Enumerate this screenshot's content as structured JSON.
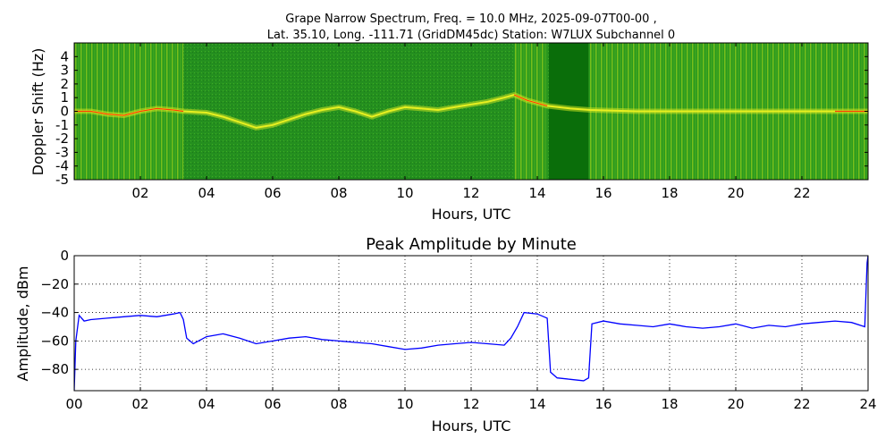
{
  "chart_data": [
    {
      "type": "heatmap",
      "title_line1": "Grape Narrow Spectrum, Freq. = 10.0 MHz, 2025-09-07T00-00 ,",
      "title_line2": "Lat.  35.10, Long. -111.71 (GridDM45dc) Station: W7LUX Subchannel 0",
      "xlabel": "Hours, UTC",
      "ylabel": "Doppler Shift (Hz)",
      "xlim": [
        0,
        24
      ],
      "ylim": [
        -5,
        5
      ],
      "x_ticks": [
        2,
        4,
        6,
        8,
        10,
        12,
        14,
        16,
        18,
        20,
        22
      ],
      "x_tick_labels": [
        "02",
        "04",
        "06",
        "08",
        "10",
        "12",
        "14",
        "16",
        "18",
        "20",
        "22"
      ],
      "y_ticks": [
        4,
        3,
        2,
        1,
        0,
        -1,
        -2,
        -3,
        -4,
        -5
      ],
      "y_tick_labels": [
        "4",
        "3",
        "2",
        "1",
        "0",
        "-1",
        "-2",
        "-3",
        "-4",
        "-5"
      ],
      "colors": {
        "background": "#228B22",
        "dark_band": "#0a6e0a",
        "trace": "#e8f020",
        "peak": "#ff2000"
      },
      "dark_band_hours": [
        [
          14.35,
          15.55
        ]
      ],
      "striped_bands_hours": [
        [
          0,
          3.3
        ],
        [
          13.3,
          14.3
        ],
        [
          15.55,
          24
        ]
      ],
      "doppler_trace": [
        {
          "t": 0.0,
          "f": 0.0
        },
        {
          "t": 0.5,
          "f": 0.0
        },
        {
          "t": 1.0,
          "f": -0.2
        },
        {
          "t": 1.5,
          "f": -0.3
        },
        {
          "t": 2.0,
          "f": 0.0
        },
        {
          "t": 2.5,
          "f": 0.2
        },
        {
          "t": 3.0,
          "f": 0.1
        },
        {
          "t": 3.3,
          "f": 0.0
        },
        {
          "t": 4.0,
          "f": -0.1
        },
        {
          "t": 4.5,
          "f": -0.4
        },
        {
          "t": 5.0,
          "f": -0.8
        },
        {
          "t": 5.5,
          "f": -1.2
        },
        {
          "t": 6.0,
          "f": -1.0
        },
        {
          "t": 6.5,
          "f": -0.6
        },
        {
          "t": 7.0,
          "f": -0.2
        },
        {
          "t": 7.5,
          "f": 0.1
        },
        {
          "t": 8.0,
          "f": 0.3
        },
        {
          "t": 8.5,
          "f": 0.0
        },
        {
          "t": 9.0,
          "f": -0.4
        },
        {
          "t": 9.5,
          "f": 0.0
        },
        {
          "t": 10.0,
          "f": 0.3
        },
        {
          "t": 10.5,
          "f": 0.2
        },
        {
          "t": 11.0,
          "f": 0.1
        },
        {
          "t": 11.5,
          "f": 0.3
        },
        {
          "t": 12.0,
          "f": 0.5
        },
        {
          "t": 12.5,
          "f": 0.7
        },
        {
          "t": 13.0,
          "f": 1.0
        },
        {
          "t": 13.3,
          "f": 1.2
        },
        {
          "t": 13.7,
          "f": 0.8
        },
        {
          "t": 14.3,
          "f": 0.4
        },
        {
          "t": 15.0,
          "f": 0.2
        },
        {
          "t": 15.6,
          "f": 0.1
        },
        {
          "t": 17.0,
          "f": 0.0
        },
        {
          "t": 19.0,
          "f": 0.0
        },
        {
          "t": 21.0,
          "f": 0.0
        },
        {
          "t": 23.0,
          "f": 0.0
        },
        {
          "t": 24.0,
          "f": 0.0
        }
      ]
    },
    {
      "type": "line",
      "title": "Peak Amplitude by Minute",
      "xlabel": "Hours, UTC",
      "ylabel": "Amplitude, dBm",
      "xlim": [
        0,
        24
      ],
      "ylim": [
        -95,
        0
      ],
      "grid": true,
      "x_ticks": [
        0,
        2,
        4,
        6,
        8,
        10,
        12,
        14,
        16,
        18,
        20,
        22,
        24
      ],
      "x_tick_labels": [
        "00",
        "02",
        "04",
        "06",
        "08",
        "10",
        "12",
        "14",
        "16",
        "18",
        "20",
        "22",
        "24"
      ],
      "y_ticks": [
        0,
        -20,
        -40,
        -60,
        -80
      ],
      "y_tick_labels": [
        "0",
        "−20",
        "−40",
        "−60",
        "−80"
      ],
      "line_color": "#0000ff",
      "series": [
        {
          "x": [
            0.0,
            0.05,
            0.15,
            0.3,
            0.5,
            1.0,
            1.5,
            2.0,
            2.5,
            3.0,
            3.2,
            3.3,
            3.4,
            3.6,
            4.0,
            4.5,
            5.0,
            5.5,
            6.0,
            6.5,
            7.0,
            7.5,
            8.0,
            8.5,
            9.0,
            9.5,
            10.0,
            10.5,
            11.0,
            11.5,
            12.0,
            12.5,
            13.0,
            13.2,
            13.4,
            13.6,
            14.0,
            14.3,
            14.4,
            14.6,
            15.0,
            15.4,
            15.55,
            15.65,
            16.0,
            16.5,
            17.0,
            17.5,
            18.0,
            18.5,
            19.0,
            19.5,
            20.0,
            20.5,
            21.0,
            21.5,
            22.0,
            22.5,
            23.0,
            23.5,
            23.9,
            23.97,
            24.0
          ],
          "y": [
            -95,
            -60,
            -42,
            -46,
            -45,
            -44,
            -43,
            -42,
            -43,
            -41,
            -40,
            -45,
            -58,
            -62,
            -57,
            -55,
            -58,
            -62,
            -60,
            -58,
            -57,
            -59,
            -60,
            -61,
            -62,
            -64,
            -66,
            -65,
            -63,
            -62,
            -61,
            -62,
            -63,
            -58,
            -50,
            -40,
            -41,
            -44,
            -82,
            -86,
            -87,
            -88,
            -86,
            -48,
            -46,
            -48,
            -49,
            -50,
            -48,
            -50,
            -51,
            -50,
            -48,
            -51,
            -49,
            -50,
            -48,
            -47,
            -46,
            -47,
            -50,
            -5,
            0
          ]
        }
      ]
    }
  ]
}
